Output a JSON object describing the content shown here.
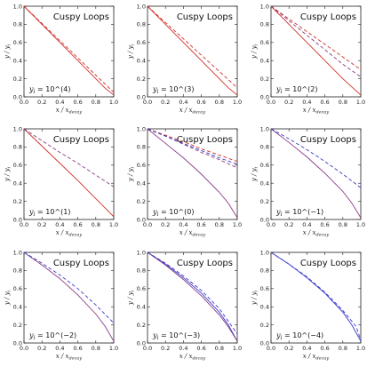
{
  "chart_data": {
    "type": "line",
    "panel_title": "Cuspy Loops",
    "xlabel": "x / x_decay",
    "ylabel": "y / y_i",
    "xlim": [
      0,
      1
    ],
    "ylim": [
      0,
      1
    ],
    "xticks": [
      "0.0",
      "0.2",
      "0.4",
      "0.6",
      "0.8",
      "1.0"
    ],
    "yticks": [
      "0.0",
      "0.2",
      "0.4",
      "0.6",
      "0.8",
      "1.0"
    ],
    "grid": false,
    "colors": {
      "red": "#d0302a",
      "purple": "#8a3c88",
      "blue": "#3a3acc",
      "axis": "#222222"
    },
    "panels": [
      {
        "annotation": "y_i = 10^(4)",
        "series": [
          {
            "color": "red",
            "style": "solid",
            "x": [
              0,
              0.2,
              0.4,
              0.6,
              0.8,
              0.9,
              1.0
            ],
            "y": [
              1,
              0.8,
              0.6,
              0.4,
              0.2,
              0.1,
              0.02
            ]
          },
          {
            "color": "red",
            "style": "dashed",
            "x": [
              0,
              0.2,
              0.4,
              0.6,
              0.8,
              1.0
            ],
            "y": [
              1,
              0.81,
              0.62,
              0.43,
              0.24,
              0.05
            ]
          }
        ]
      },
      {
        "annotation": "y_i = 10^(3)",
        "series": [
          {
            "color": "red",
            "style": "solid",
            "x": [
              0,
              0.2,
              0.4,
              0.6,
              0.8,
              0.9,
              1.0
            ],
            "y": [
              1,
              0.8,
              0.6,
              0.4,
              0.2,
              0.1,
              0.02
            ]
          },
          {
            "color": "red",
            "style": "dashed",
            "x": [
              0,
              0.2,
              0.4,
              0.6,
              0.8,
              1.0
            ],
            "y": [
              1,
              0.82,
              0.64,
              0.46,
              0.28,
              0.1
            ]
          }
        ]
      },
      {
        "annotation": "y_i = 10^(2)",
        "series": [
          {
            "color": "red",
            "style": "solid",
            "x": [
              0,
              0.2,
              0.4,
              0.6,
              0.8,
              0.9,
              1.0
            ],
            "y": [
              1,
              0.8,
              0.6,
              0.4,
              0.2,
              0.11,
              0.02
            ]
          },
          {
            "color": "red",
            "style": "dashed",
            "x": [
              0,
              0.2,
              0.4,
              0.6,
              0.8,
              1.0
            ],
            "y": [
              1,
              0.86,
              0.72,
              0.58,
              0.44,
              0.3
            ]
          },
          {
            "color": "purple",
            "style": "dashed",
            "x": [
              0,
              0.2,
              0.4,
              0.6,
              0.8,
              1.0
            ],
            "y": [
              1,
              0.84,
              0.68,
              0.52,
              0.36,
              0.22
            ]
          }
        ]
      },
      {
        "annotation": "y_i = 10^(1)",
        "series": [
          {
            "color": "red",
            "style": "solid",
            "x": [
              0,
              0.2,
              0.4,
              0.6,
              0.8,
              0.9,
              1.0
            ],
            "y": [
              1,
              0.81,
              0.62,
              0.43,
              0.23,
              0.13,
              0.03
            ]
          },
          {
            "color": "purple",
            "style": "dashed",
            "x": [
              0,
              0.2,
              0.4,
              0.6,
              0.8,
              1.0
            ],
            "y": [
              1,
              0.87,
              0.74,
              0.62,
              0.49,
              0.36
            ]
          }
        ]
      },
      {
        "annotation": "y_i = 10^(0)",
        "series": [
          {
            "color": "purple",
            "style": "solid",
            "x": [
              0,
              0.2,
              0.4,
              0.6,
              0.8,
              0.9,
              1.0
            ],
            "y": [
              1,
              0.84,
              0.68,
              0.5,
              0.3,
              0.18,
              0.02
            ]
          },
          {
            "color": "purple",
            "style": "dashed",
            "x": [
              0,
              0.2,
              0.4,
              0.6,
              0.8,
              1.0
            ],
            "y": [
              1,
              0.92,
              0.83,
              0.74,
              0.66,
              0.57
            ]
          },
          {
            "color": "red",
            "style": "dashed",
            "x": [
              0,
              0.2,
              0.4,
              0.6,
              0.8,
              1.0
            ],
            "y": [
              1,
              0.93,
              0.86,
              0.78,
              0.71,
              0.64
            ]
          },
          {
            "color": "blue",
            "style": "dashed",
            "x": [
              0,
              0.2,
              0.4,
              0.6,
              0.8,
              1.0
            ],
            "y": [
              1,
              0.92,
              0.84,
              0.76,
              0.68,
              0.61
            ]
          }
        ]
      },
      {
        "annotation": "y_i = 10^(−1)",
        "series": [
          {
            "color": "purple",
            "style": "solid",
            "x": [
              0,
              0.2,
              0.4,
              0.6,
              0.8,
              0.9,
              1.0
            ],
            "y": [
              1,
              0.85,
              0.69,
              0.51,
              0.31,
              0.18,
              0.02
            ]
          },
          {
            "color": "blue",
            "style": "dashed",
            "x": [
              0,
              0.2,
              0.4,
              0.6,
              0.8,
              1.0
            ],
            "y": [
              1,
              0.89,
              0.77,
              0.64,
              0.5,
              0.35
            ]
          }
        ]
      },
      {
        "annotation": "y_i = 10^(−2)",
        "series": [
          {
            "color": "purple",
            "style": "solid",
            "x": [
              0,
              0.2,
              0.4,
              0.6,
              0.8,
              0.9,
              1.0
            ],
            "y": [
              1,
              0.86,
              0.71,
              0.53,
              0.32,
              0.19,
              0.02
            ]
          },
          {
            "color": "blue",
            "style": "dashed",
            "x": [
              0,
              0.2,
              0.4,
              0.6,
              0.8,
              1.0
            ],
            "y": [
              1,
              0.88,
              0.75,
              0.6,
              0.42,
              0.22
            ]
          }
        ]
      },
      {
        "annotation": "y_i = 10^(−3)",
        "series": [
          {
            "color": "blue",
            "style": "solid",
            "x": [
              0,
              0.2,
              0.4,
              0.6,
              0.8,
              0.9,
              1.0
            ],
            "y": [
              1,
              0.87,
              0.72,
              0.55,
              0.34,
              0.2,
              0.02
            ]
          },
          {
            "color": "purple",
            "style": "solid",
            "x": [
              0,
              0.2,
              0.4,
              0.6,
              0.8,
              0.9,
              1.0
            ],
            "y": [
              1,
              0.86,
              0.7,
              0.52,
              0.31,
              0.18,
              0.02
            ]
          },
          {
            "color": "blue",
            "style": "dashed",
            "x": [
              0,
              0.2,
              0.4,
              0.6,
              0.8,
              1.0
            ],
            "y": [
              1,
              0.88,
              0.74,
              0.58,
              0.38,
              0.1
            ]
          }
        ]
      },
      {
        "annotation": "y_i = 10^(−4)",
        "series": [
          {
            "color": "blue",
            "style": "solid",
            "x": [
              0,
              0.2,
              0.4,
              0.6,
              0.8,
              0.9,
              1.0
            ],
            "y": [
              1,
              0.87,
              0.72,
              0.55,
              0.34,
              0.2,
              0.02
            ]
          },
          {
            "color": "blue",
            "style": "dashed",
            "x": [
              0,
              0.2,
              0.4,
              0.6,
              0.8,
              0.95,
              1.0
            ],
            "y": [
              1,
              0.87,
              0.73,
              0.56,
              0.36,
              0.18,
              0.03
            ]
          }
        ]
      }
    ]
  }
}
